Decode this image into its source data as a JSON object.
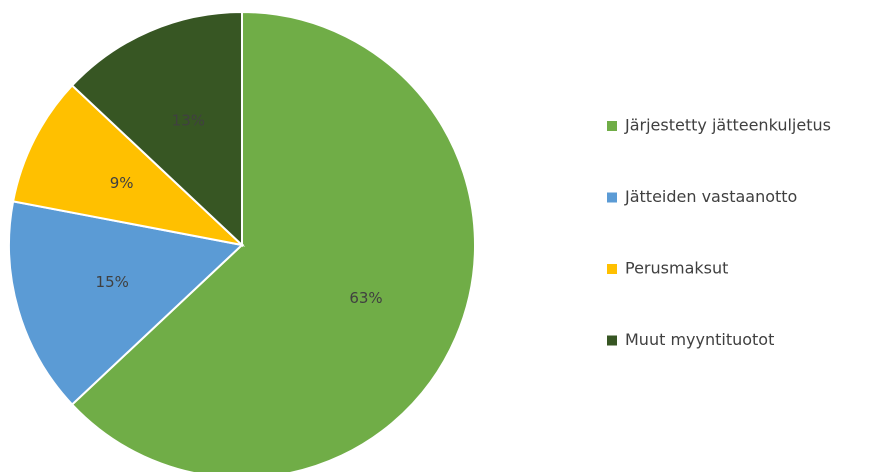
{
  "chart_data": {
    "type": "pie",
    "categories": [
      "Järjestetty jätteenkuljetus",
      "Jätteiden vastaanotto",
      "Perusmaksut",
      "Muut myyntituotot"
    ],
    "values": [
      63,
      15,
      9,
      13
    ],
    "value_labels": [
      "63%",
      "15%",
      "9%",
      "13%"
    ],
    "colors": [
      "#70ad47",
      "#5b9bd5",
      "#ffc000",
      "#375623"
    ],
    "legend": "right"
  }
}
